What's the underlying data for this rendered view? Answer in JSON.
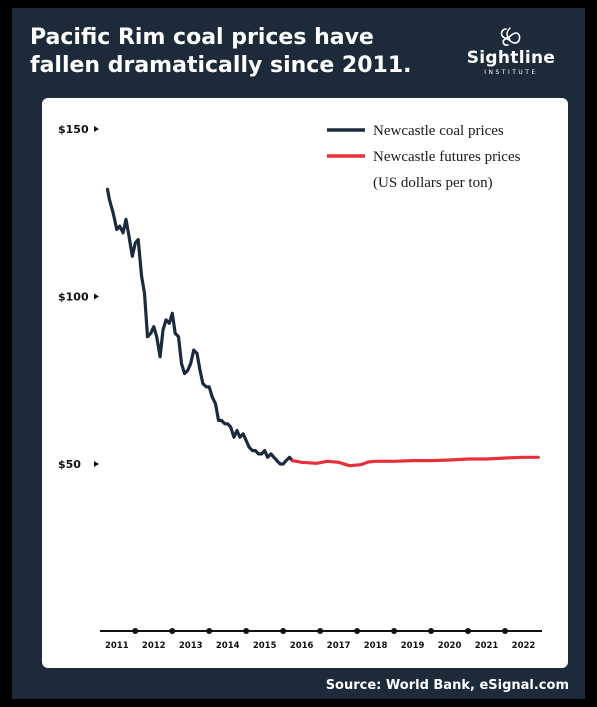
{
  "header": {
    "title_line1": "Pacific Rim coal prices have",
    "title_line2": "fallen dramatically since 2011."
  },
  "brand": {
    "name": "Sightline",
    "subtitle": "INSTITUTE"
  },
  "footer": {
    "source": "Source: World Bank, eSignal.com"
  },
  "colors": {
    "background": "#1c2a3a",
    "coal_line": "#1b2b3d",
    "futures_line": "#e8303a"
  },
  "chart_data": {
    "type": "line",
    "xlim": [
      2010.6,
      2022.5
    ],
    "ylim": [
      25,
      152
    ],
    "yticks": [
      {
        "value": 150,
        "label": "$150"
      },
      {
        "value": 100,
        "label": "$100"
      },
      {
        "value": 50,
        "label": "$50"
      }
    ],
    "xticks": [
      {
        "value": 2011,
        "label": "2011"
      },
      {
        "value": 2012,
        "label": "2012"
      },
      {
        "value": 2013,
        "label": "2013"
      },
      {
        "value": 2014,
        "label": "2014"
      },
      {
        "value": 2015,
        "label": "2015"
      },
      {
        "value": 2016,
        "label": "2016"
      },
      {
        "value": 2017,
        "label": "2017"
      },
      {
        "value": 2018,
        "label": "2018"
      },
      {
        "value": 2019,
        "label": "2019"
      },
      {
        "value": 2020,
        "label": "2020"
      },
      {
        "value": 2021,
        "label": "2021"
      },
      {
        "value": 2022,
        "label": "2022"
      }
    ],
    "axis_markers": [
      2011.5,
      2012.5,
      2013.5,
      2014.5,
      2015.5,
      2016.5,
      2017.5,
      2018.5,
      2019.5,
      2020.5,
      2021.5
    ],
    "legend_note": "(US dollars per ton)",
    "grid": false,
    "legend_position": "top-right",
    "series": [
      {
        "name": "Newcastle coal prices",
        "color": "#1b2b3d",
        "x": [
          2010.75,
          2010.8,
          2010.9,
          2011.0,
          2011.08,
          2011.17,
          2011.25,
          2011.33,
          2011.42,
          2011.5,
          2011.58,
          2011.67,
          2011.75,
          2011.83,
          2011.92,
          2012.0,
          2012.08,
          2012.17,
          2012.25,
          2012.33,
          2012.42,
          2012.5,
          2012.58,
          2012.67,
          2012.75,
          2012.83,
          2012.92,
          2013.0,
          2013.08,
          2013.17,
          2013.25,
          2013.33,
          2013.42,
          2013.5,
          2013.58,
          2013.67,
          2013.75,
          2013.83,
          2013.92,
          2014.0,
          2014.08,
          2014.17,
          2014.25,
          2014.33,
          2014.42,
          2014.5,
          2014.58,
          2014.67,
          2014.75,
          2014.83,
          2014.92,
          2015.0,
          2015.08,
          2015.17,
          2015.25,
          2015.33,
          2015.42,
          2015.5,
          2015.58,
          2015.67,
          2015.75
        ],
        "values": [
          132,
          129,
          125,
          120,
          121,
          119,
          123,
          118,
          112,
          116,
          117,
          106,
          101,
          88,
          89,
          91,
          88,
          82,
          90,
          93,
          92,
          95,
          89,
          88,
          80,
          77,
          78,
          80,
          84,
          83,
          78,
          74,
          73,
          73,
          70,
          68,
          63,
          63,
          62,
          62,
          61,
          58,
          60,
          58,
          59,
          57,
          55,
          54,
          54,
          53,
          53,
          54,
          52,
          53,
          52,
          51,
          50,
          50,
          51,
          52,
          51
        ],
        "width": 3.2
      },
      {
        "name": "Newcastle futures prices",
        "color": "#e8303a",
        "x": [
          2015.75,
          2016.0,
          2016.4,
          2016.7,
          2017.0,
          2017.3,
          2017.6,
          2017.8,
          2018.0,
          2018.5,
          2019.0,
          2019.5,
          2020.0,
          2020.5,
          2021.0,
          2021.5,
          2022.0,
          2022.4
        ],
        "values": [
          51,
          50.5,
          50.2,
          50.8,
          50.5,
          49.5,
          49.8,
          50.6,
          50.8,
          50.8,
          51.0,
          51.0,
          51.2,
          51.5,
          51.5,
          51.8,
          52.0,
          52.0
        ],
        "width": 3.2
      }
    ]
  }
}
